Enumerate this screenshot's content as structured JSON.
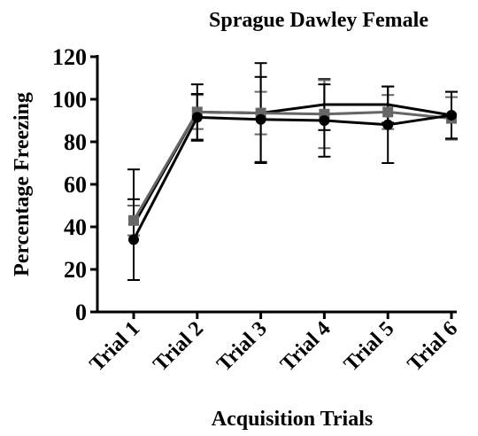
{
  "chart_data": {
    "type": "line",
    "title": "Sprague Dawley Female",
    "x_label": "Acquisition  Trials",
    "y_label": "Percentage Freezing",
    "categories": [
      "Trial 1",
      "Trial 2",
      "Trial 3",
      "Trial 4",
      "Trial 5",
      "Trial 6"
    ],
    "series": [
      {
        "color": "#000000",
        "marker": "none",
        "values": [
          41,
          94,
          93.5,
          97.5,
          97.5,
          92.5
        ],
        "errors": [
          26,
          13,
          23.5,
          12,
          8.5,
          11
        ]
      },
      {
        "color": "#666666",
        "marker": "square",
        "values": [
          43,
          94,
          93.5,
          93,
          94,
          91
        ],
        "errors": [
          7,
          8,
          10,
          16,
          8,
          10
        ]
      },
      {
        "color": "#000000",
        "marker": "circle",
        "values": [
          34,
          91.5,
          90.5,
          90,
          88,
          92.5
        ],
        "errors": [
          19,
          11,
          20,
          17,
          18,
          11
        ]
      }
    ],
    "ylim": [
      0,
      120
    ],
    "yticks": [
      0,
      20,
      40,
      60,
      80,
      100,
      120
    ]
  }
}
